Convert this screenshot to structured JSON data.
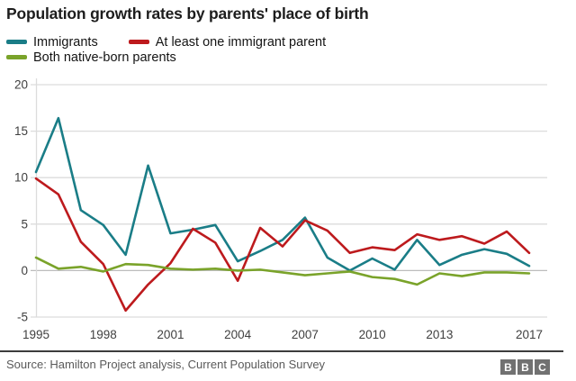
{
  "header": {
    "title": "Population growth rates by parents' place of birth"
  },
  "legend": {
    "items": [
      {
        "label": "Immigrants",
        "color": "#1a7d87"
      },
      {
        "label": "At least one immigrant parent",
        "color": "#bd1a1d"
      },
      {
        "label": "Both native-born parents",
        "color": "#7aa32a"
      }
    ]
  },
  "chart_data": {
    "type": "line",
    "title": "Population growth rates by parents' place of birth",
    "xlabel": "",
    "ylabel": "",
    "xlim": [
      1995,
      2017
    ],
    "ylim": [
      -5,
      20
    ],
    "grid": true,
    "legend_position": "top",
    "xticks": [
      1995,
      1998,
      2001,
      2004,
      2007,
      2010,
      2013,
      2017
    ],
    "yticks": [
      20,
      15,
      10,
      5,
      0,
      -5
    ],
    "x": [
      1995,
      1996,
      1997,
      1998,
      1999,
      2000,
      2001,
      2002,
      2003,
      2004,
      2005,
      2006,
      2007,
      2008,
      2009,
      2010,
      2011,
      2012,
      2013,
      2014,
      2015,
      2016,
      2017
    ],
    "series": [
      {
        "name": "Immigrants",
        "color": "#1a7d87",
        "values": [
          10.6,
          16.4,
          6.5,
          4.9,
          1.7,
          11.3,
          4.0,
          4.4,
          4.9,
          1.0,
          2.1,
          3.3,
          5.7,
          1.4,
          0.0,
          1.3,
          0.1,
          3.3,
          0.6,
          1.7,
          2.3,
          1.8,
          0.5
        ]
      },
      {
        "name": "At least one immigrant parent",
        "color": "#bd1a1d",
        "values": [
          9.9,
          8.2,
          3.1,
          0.7,
          -4.3,
          -1.5,
          0.8,
          4.5,
          3.0,
          -1.1,
          4.6,
          2.6,
          5.4,
          4.3,
          1.9,
          2.5,
          2.2,
          3.9,
          3.3,
          3.7,
          2.9,
          4.2,
          1.9
        ]
      },
      {
        "name": "Both native-born parents",
        "color": "#7aa32a",
        "values": [
          1.4,
          0.2,
          0.4,
          -0.1,
          0.7,
          0.6,
          0.2,
          0.1,
          0.2,
          0.0,
          0.1,
          -0.2,
          -0.5,
          -0.3,
          -0.1,
          -0.7,
          -0.9,
          -1.5,
          -0.3,
          -0.6,
          -0.2,
          -0.2,
          -0.3
        ]
      }
    ],
    "colors": {
      "gridline": "#dcdcdc",
      "zero_line": "#bcbcbc",
      "tick_text": "#404040"
    }
  },
  "footer": {
    "source": "Source: Hamilton Project analysis, Current Population Survey",
    "logo_letters": [
      "B",
      "B",
      "C"
    ]
  }
}
